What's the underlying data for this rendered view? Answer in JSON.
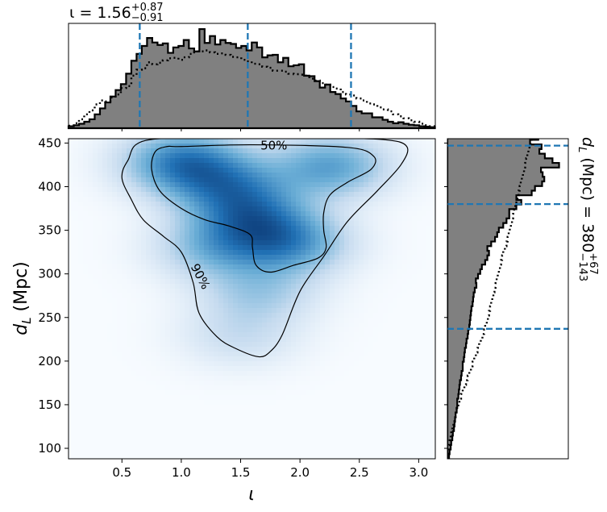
{
  "chart_data": [
    {
      "panel": "top-marginal",
      "type": "histogram",
      "title": {
        "base": "ι = 1.56",
        "sup": "+0.87",
        "sub": "−0.91"
      },
      "xlim": [
        0.05,
        3.14
      ],
      "bin_edges_start": 0.05,
      "bin_width": 0.0441,
      "series": [
        {
          "style": "filled",
          "values": [
            0.4,
            0.6,
            0.9,
            1.3,
            1.8,
            2.8,
            4.0,
            5.2,
            6.4,
            7.7,
            8.9,
            11.0,
            13.6,
            15.0,
            16.6,
            18.2,
            17.3,
            16.8,
            17.1,
            15.2,
            16.3,
            16.6,
            17.8,
            16.1,
            15.5,
            20.0,
            17.2,
            18.6,
            16.9,
            17.8,
            17.2,
            17.0,
            16.2,
            16.6,
            15.7,
            17.3,
            16.3,
            14.3,
            14.7,
            14.8,
            13.3,
            14.2,
            12.5,
            12.7,
            12.9,
            10.6,
            10.5,
            9.5,
            8.2,
            8.8,
            7.3,
            6.9,
            6.0,
            5.4,
            4.5,
            3.4,
            3.0,
            3.0,
            2.2,
            2.2,
            1.7,
            1.3,
            1.0,
            1.2,
            0.9,
            0.7,
            0.6,
            0.4,
            0.3,
            0.2
          ]
        },
        {
          "style": "dotted",
          "values": [
            0.5,
            1.0,
            1.8,
            2.8,
            3.6,
            4.8,
            5.6,
            5.4,
            6.2,
            6.8,
            8.1,
            8.5,
            10.6,
            11.8,
            12.1,
            13.3,
            12.9,
            13.2,
            13.7,
            14.1,
            14.2,
            13.8,
            14.3,
            15.0,
            15.5,
            15.5,
            15.7,
            15.3,
            15.0,
            15.1,
            14.8,
            14.4,
            14.3,
            13.8,
            13.5,
            13.0,
            12.9,
            12.4,
            12.2,
            11.6,
            11.6,
            11.4,
            11.0,
            10.9,
            10.8,
            10.6,
            10.0,
            9.6,
            9.1,
            8.8,
            8.3,
            8.0,
            7.3,
            6.8,
            6.6,
            6.0,
            5.6,
            5.0,
            4.8,
            4.2,
            3.8,
            3.4,
            2.8,
            2.4,
            2.0,
            1.6,
            1.3,
            0.9,
            0.6,
            0.4
          ]
        }
      ],
      "quantile_lines": [
        0.65,
        1.56,
        2.43
      ]
    },
    {
      "panel": "main-2d",
      "type": "heatmap",
      "xlabel": "ι",
      "ylabel": "d_L (Mpc)",
      "xlim": [
        0.05,
        3.14
      ],
      "ylim": [
        88,
        455
      ],
      "xticks": [
        0.5,
        1.0,
        1.5,
        2.0,
        2.5,
        3.0
      ],
      "yticks": [
        100,
        150,
        200,
        250,
        300,
        350,
        400,
        450
      ],
      "colormap": [
        "#f7fbff",
        "#c6dbef",
        "#6baed6",
        "#2171b5",
        "#08306b"
      ],
      "density_peaks": [
        {
          "x": 1.02,
          "y": 428,
          "w": 1.0
        },
        {
          "x": 1.4,
          "y": 400,
          "w": 0.75
        },
        {
          "x": 2.25,
          "y": 423,
          "w": 0.75
        },
        {
          "x": 1.6,
          "y": 365,
          "w": 0.8
        },
        {
          "x": 1.9,
          "y": 335,
          "w": 0.8
        },
        {
          "x": 1.3,
          "y": 330,
          "w": 0.55
        },
        {
          "x": 1.65,
          "y": 280,
          "w": 0.4
        },
        {
          "x": 1.5,
          "y": 230,
          "w": 0.25
        }
      ],
      "contours": [
        {
          "label": "50%",
          "label_at": [
            1.78,
            447
          ],
          "path": [
            [
              1.0,
              446
            ],
            [
              1.6,
              448
            ],
            [
              2.4,
              445
            ],
            [
              2.62,
              435
            ],
            [
              2.6,
              420
            ],
            [
              2.4,
              405
            ],
            [
              2.25,
              390
            ],
            [
              2.2,
              370
            ],
            [
              2.2,
              350
            ],
            [
              2.22,
              330
            ],
            [
              2.15,
              318
            ],
            [
              1.95,
              310
            ],
            [
              1.75,
              302
            ],
            [
              1.63,
              310
            ],
            [
              1.6,
              330
            ],
            [
              1.58,
              345
            ],
            [
              1.4,
              355
            ],
            [
              1.2,
              362
            ],
            [
              1.0,
              375
            ],
            [
              0.82,
              395
            ],
            [
              0.75,
              420
            ],
            [
              0.78,
              440
            ],
            [
              0.88,
              446
            ]
          ]
        },
        {
          "label": "90%",
          "label_at": [
            1.16,
            297
          ],
          "path": [
            [
              0.55,
              430
            ],
            [
              0.7,
              453
            ],
            [
              1.4,
              456
            ],
            [
              2.1,
              456
            ],
            [
              2.7,
              454
            ],
            [
              2.9,
              446
            ],
            [
              2.85,
              425
            ],
            [
              2.65,
              395
            ],
            [
              2.4,
              360
            ],
            [
              2.2,
              320
            ],
            [
              2.0,
              280
            ],
            [
              1.85,
              230
            ],
            [
              1.75,
              211
            ],
            [
              1.65,
              205
            ],
            [
              1.45,
              215
            ],
            [
              1.3,
              228
            ],
            [
              1.15,
              255
            ],
            [
              1.1,
              290
            ],
            [
              1.0,
              325
            ],
            [
              0.85,
              343
            ],
            [
              0.68,
              362
            ],
            [
              0.58,
              385
            ],
            [
              0.5,
              410
            ]
          ]
        }
      ]
    },
    {
      "panel": "right-marginal",
      "type": "histogram",
      "orientation": "horizontal",
      "title": {
        "base": "d_L (Mpc) = 380",
        "sup": "+67",
        "sub": "−143"
      },
      "ylim": [
        88,
        455
      ],
      "bin_edges_start": 88,
      "bin_width": 5.3,
      "series": [
        {
          "style": "filled",
          "values": [
            0.3,
            0.4,
            0.6,
            0.7,
            0.9,
            1.0,
            1.2,
            1.3,
            1.4,
            1.5,
            1.7,
            1.8,
            1.8,
            2.0,
            2.1,
            2.2,
            2.3,
            2.5,
            2.6,
            2.8,
            2.8,
            3.0,
            3.1,
            3.2,
            3.4,
            3.5,
            3.7,
            3.8,
            4.0,
            4.1,
            4.2,
            4.3,
            4.4,
            4.6,
            4.7,
            4.8,
            5.0,
            5.3,
            5.2,
            5.6,
            6.0,
            6.3,
            6.9,
            7.3,
            7.6,
            7.3,
            8.0,
            8.7,
            9.1,
            9.4,
            10.2,
            10.8,
            11.3,
            11.3,
            12.6,
            13.5,
            12.6,
            15.4,
            16.0,
            17.3,
            17.7,
            17.4,
            17.1,
            20.4,
            19.2,
            17.8,
            16.8,
            17.2,
            15.1,
            16.6
          ]
        },
        {
          "style": "dotted",
          "values": [
            0.1,
            0.2,
            0.3,
            0.4,
            0.6,
            0.7,
            0.9,
            1.1,
            1.3,
            1.5,
            1.7,
            2.0,
            2.2,
            2.5,
            2.8,
            3.1,
            3.4,
            3.7,
            4.0,
            4.3,
            4.6,
            4.9,
            5.2,
            5.5,
            5.8,
            6.1,
            6.4,
            6.7,
            6.9,
            7.2,
            7.4,
            7.6,
            7.8,
            8.0,
            8.2,
            8.4,
            8.6,
            8.8,
            9.0,
            9.2,
            9.4,
            9.6,
            9.8,
            10.0,
            10.2,
            10.5,
            10.8,
            11.0,
            11.2,
            11.4,
            11.6,
            11.8,
            12.0,
            12.2,
            12.4,
            12.6,
            12.8,
            13.0,
            13.2,
            13.4,
            13.6,
            13.8,
            14.0,
            14.2,
            14.4,
            14.6,
            14.8,
            15.0,
            15.2,
            15.4
          ]
        }
      ],
      "quantile_lines": [
        237,
        380,
        447
      ]
    }
  ],
  "colors": {
    "filled": "#808080",
    "outline": "#000000",
    "quantile": "#1f77b4",
    "contour": "#000000"
  }
}
